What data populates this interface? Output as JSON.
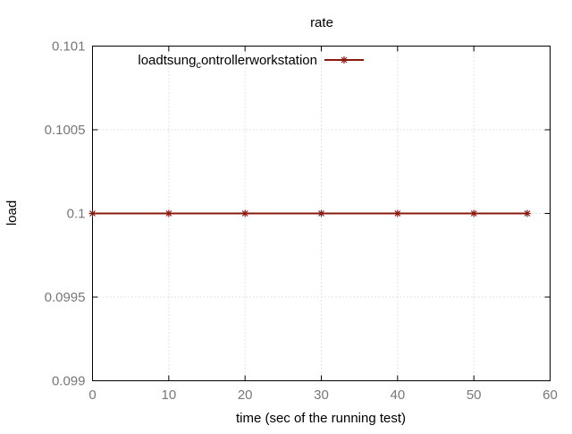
{
  "chart_data": {
    "type": "line",
    "title": "rate",
    "xlabel": "time (sec of the running test)",
    "ylabel": "load",
    "xlim": [
      0,
      60
    ],
    "ylim": [
      0.099,
      0.101
    ],
    "xticks": [
      0,
      10,
      20,
      30,
      40,
      50,
      60
    ],
    "yticks": [
      0.099,
      0.0995,
      0.1,
      0.1005,
      0.101
    ],
    "xtick_labels": [
      "0",
      "10",
      "20",
      "30",
      "40",
      "50",
      "60"
    ],
    "ytick_labels": [
      "0.099",
      "0.0995",
      "0.1",
      "0.1005",
      "0.101"
    ],
    "grid": true,
    "legend_position": "top-left",
    "legend_title": "loadtsung",
    "legend_subscript": "c",
    "legend_rest": "ontrollerworkstation",
    "series": [
      {
        "name": "loadtsung_controllerworkstation",
        "color": "#8b1a0e",
        "x": [
          0,
          10,
          20,
          30,
          40,
          50,
          57
        ],
        "y": [
          0.1,
          0.1,
          0.1,
          0.1,
          0.1,
          0.1,
          0.1
        ]
      }
    ]
  }
}
